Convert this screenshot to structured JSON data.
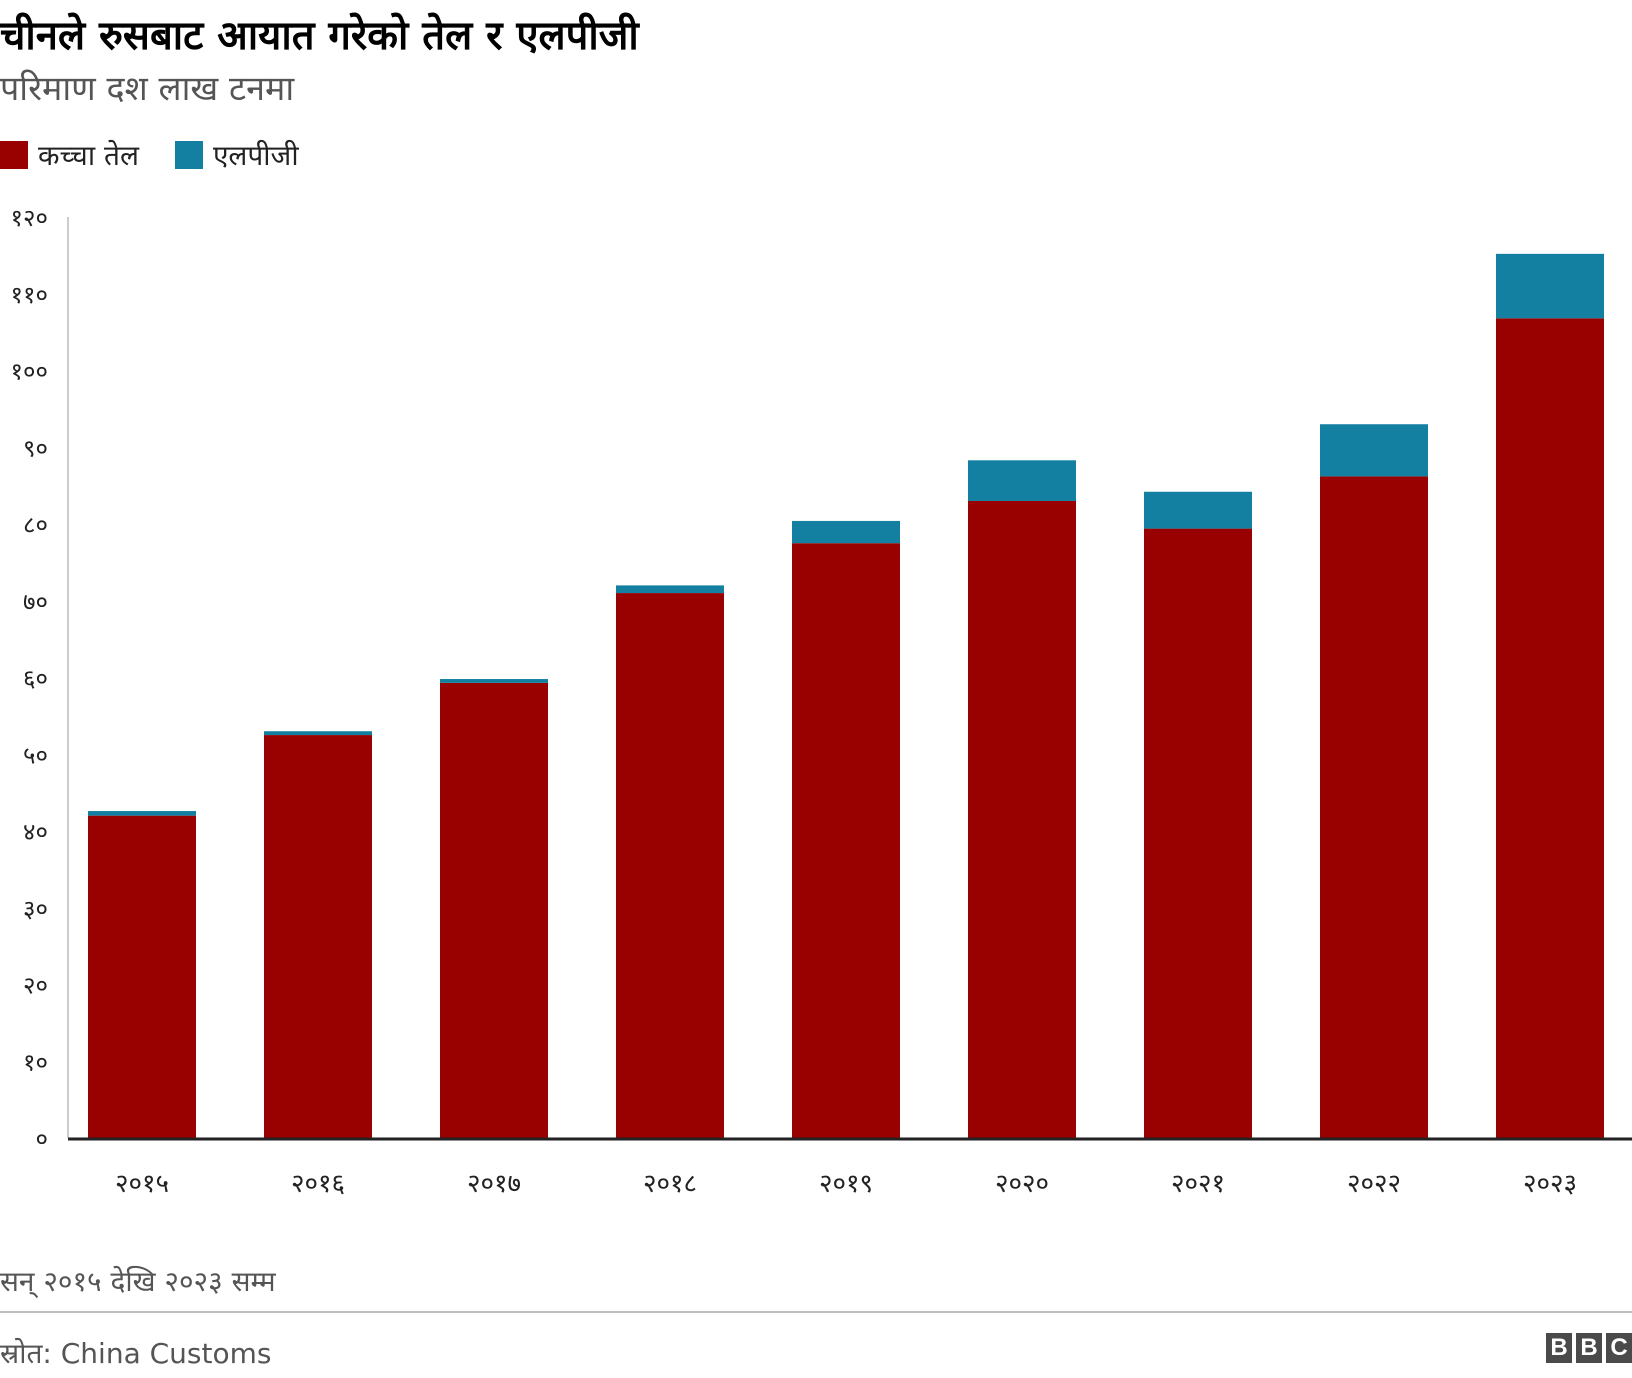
{
  "chart_data": {
    "type": "bar",
    "stacked": true,
    "title": "चीनले रुसबाट आयात गरेको तेल र एलपीजी",
    "subtitle": "परिमाण दश लाख टनमा",
    "categories": [
      "२०१५",
      "२०१६",
      "२०१७",
      "२०१८",
      "२०१९",
      "२०२०",
      "२०२१",
      "२०२२",
      "२०२३"
    ],
    "series": [
      {
        "name": "कच्चा तेल",
        "color": "#990000",
        "values": [
          42.0,
          52.5,
          59.3,
          71.0,
          77.5,
          83.0,
          79.4,
          86.2,
          106.8
        ]
      },
      {
        "name": "एलपीजी",
        "color": "#1380A1",
        "values": [
          0.6,
          0.5,
          0.5,
          1.0,
          2.9,
          5.3,
          4.8,
          6.8,
          8.4
        ]
      }
    ],
    "yticks": [
      "०",
      "१०",
      "२०",
      "३०",
      "४०",
      "५०",
      "६०",
      "७०",
      "८०",
      "९०",
      "१००",
      "११०",
      "१२०"
    ],
    "ylim": [
      0,
      120
    ],
    "legend_position": "top-left",
    "note": "सन् २०१५ देखि २०२३ सम्म",
    "source": "स्रोत: China Customs"
  },
  "branding": {
    "logo_letters": [
      "B",
      "B",
      "C"
    ]
  }
}
